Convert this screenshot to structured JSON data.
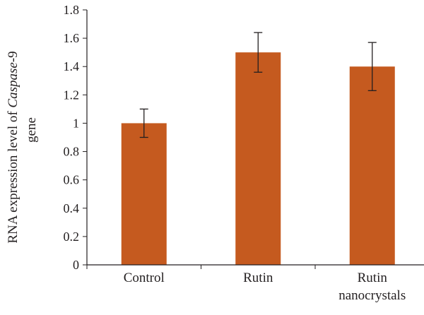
{
  "chart_data": {
    "type": "bar",
    "categories": [
      [
        "Control"
      ],
      [
        "Rutin"
      ],
      [
        "Rutin",
        "nanocrystals"
      ]
    ],
    "values": [
      1.0,
      1.5,
      1.4
    ],
    "error_bars": [
      [
        0.9,
        1.1
      ],
      [
        1.36,
        1.64
      ],
      [
        1.23,
        1.57
      ]
    ],
    "ylim": [
      0,
      1.8
    ],
    "yticks": [
      "0",
      "0.2",
      "0.4",
      "0.6",
      "0.8",
      "1",
      "1.2",
      "1.4",
      "1.6",
      "1.8"
    ],
    "ylabel": {
      "line1_prefix": "RNA expression level of ",
      "line1_italic": "Caspase",
      "line1_suffix": "-9",
      "line2": "gene"
    },
    "bar_color": "#c55a1f",
    "axis_color": "#231f20",
    "grid": false
  }
}
